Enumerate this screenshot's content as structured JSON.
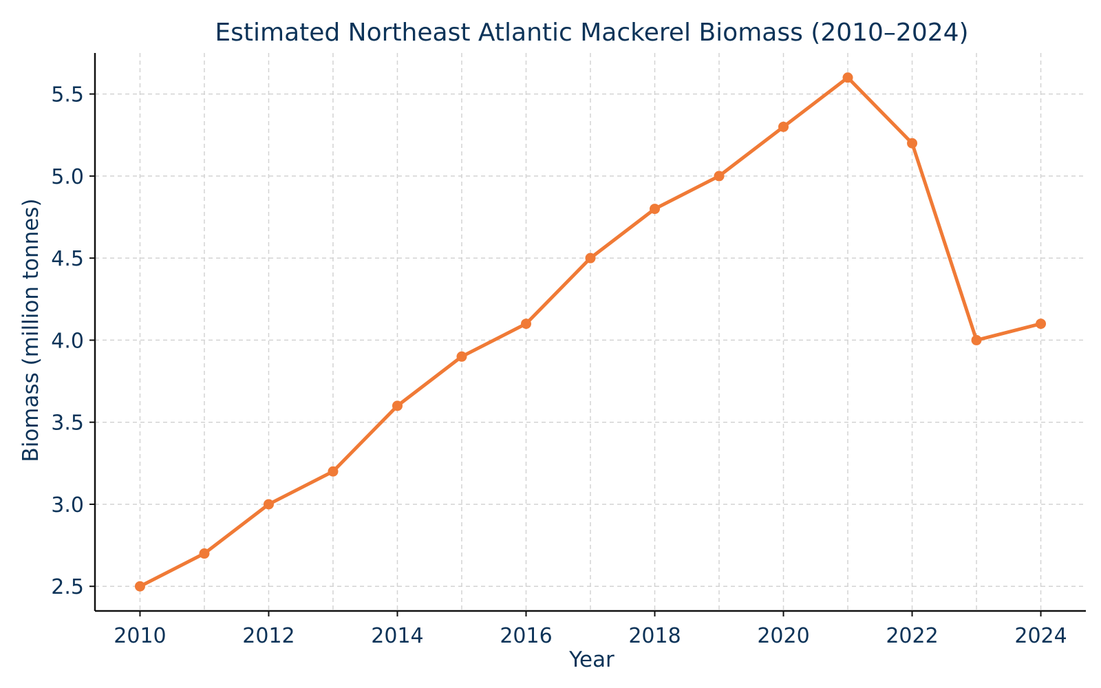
{
  "chart_data": {
    "type": "line",
    "title": "Estimated Northeast Atlantic Mackerel Biomass (2010–2024)",
    "xlabel": "Year",
    "ylabel": "Biomass (million tonnes)",
    "x": [
      2010,
      2011,
      2012,
      2013,
      2014,
      2015,
      2016,
      2017,
      2018,
      2019,
      2020,
      2021,
      2022,
      2023,
      2024
    ],
    "series": [
      {
        "values": [
          2.5,
          2.7,
          3.0,
          3.2,
          3.6,
          3.9,
          4.1,
          4.5,
          4.8,
          5.0,
          5.3,
          5.6,
          5.2,
          4.0,
          4.1
        ]
      }
    ],
    "xlim": [
      2009.3,
      2024.7
    ],
    "ylim": [
      2.35,
      5.75
    ],
    "xticks": [
      2010,
      2012,
      2014,
      2016,
      2018,
      2020,
      2022,
      2024
    ],
    "xtick_labels": [
      "2010",
      "2012",
      "2014",
      "2016",
      "2018",
      "2020",
      "2022",
      "2024"
    ],
    "yticks": [
      2.5,
      3.0,
      3.5,
      4.0,
      4.5,
      5.0,
      5.5
    ],
    "ytick_labels": [
      "2.5",
      "3.0",
      "3.5",
      "4.0",
      "4.5",
      "5.0",
      "5.5"
    ],
    "grid": true,
    "colors": {
      "series": "#f07a36",
      "text": "#0c3358",
      "axis": "#111111",
      "grid": "#d3d3d3"
    }
  }
}
